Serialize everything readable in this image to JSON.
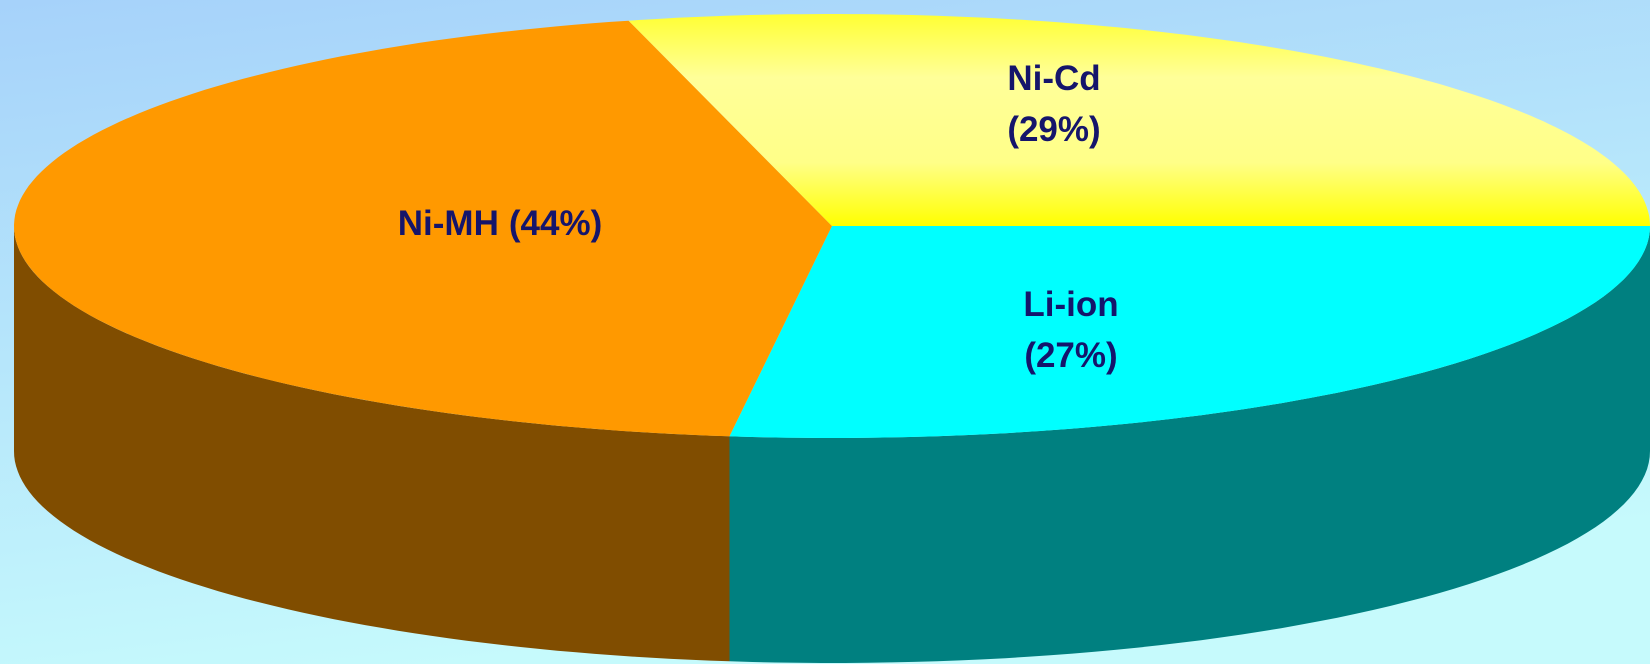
{
  "chart_data": {
    "type": "pie3d",
    "categories": [
      "Li-ion",
      "Ni-MH",
      "Ni-Cd"
    ],
    "values": [
      27,
      44,
      29
    ],
    "value_labels": [
      "(27%)",
      "(44%)",
      "(29%)"
    ],
    "colors": [
      "#00ffff",
      "#ff9900",
      "#ffff00"
    ]
  }
}
